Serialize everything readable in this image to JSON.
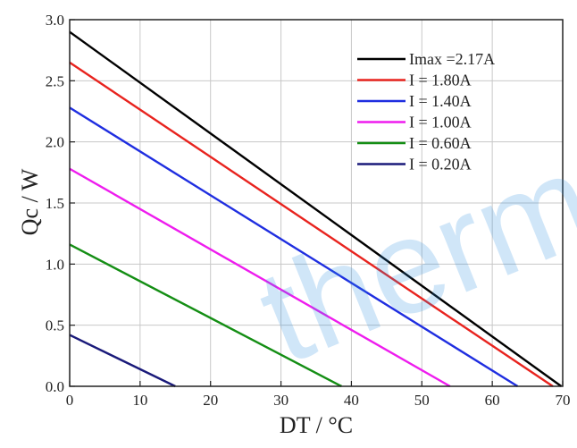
{
  "chart_data": {
    "type": "line",
    "title": "",
    "xlabel": "DT / °C",
    "ylabel": "Qc / W",
    "xlim": [
      0,
      70
    ],
    "ylim": [
      0.0,
      3.0
    ],
    "x_ticks": [
      "0",
      "10",
      "20",
      "30",
      "40",
      "50",
      "60",
      "70"
    ],
    "y_ticks": [
      "0.0",
      "0.5",
      "1.0",
      "1.5",
      "2.0",
      "2.5",
      "3.0"
    ],
    "grid": true,
    "legend_position": "top-right",
    "series": [
      {
        "name": "Imax =2.17A",
        "color": "#000000",
        "x": [
          0,
          69.8
        ],
        "y": [
          2.9,
          0.0
        ]
      },
      {
        "name": "I = 1.80A",
        "color": "#e8231e",
        "x": [
          0,
          68.6
        ],
        "y": [
          2.65,
          0.0
        ]
      },
      {
        "name": "I = 1.40A",
        "color": "#1f2ee0",
        "x": [
          0,
          63.6
        ],
        "y": [
          2.28,
          0.0
        ]
      },
      {
        "name": "I = 1.00A",
        "color": "#ee1cee",
        "x": [
          0,
          54.0
        ],
        "y": [
          1.78,
          0.0
        ]
      },
      {
        "name": "I = 0.60A",
        "color": "#148e14",
        "x": [
          0,
          38.6
        ],
        "y": [
          1.16,
          0.0
        ]
      },
      {
        "name": "I = 0.20A",
        "color": "#1a1a7a",
        "x": [
          0,
          15.0
        ],
        "y": [
          0.42,
          0.0
        ]
      }
    ]
  },
  "watermark": {
    "text": "therm",
    "color": "#2b8fe0"
  }
}
